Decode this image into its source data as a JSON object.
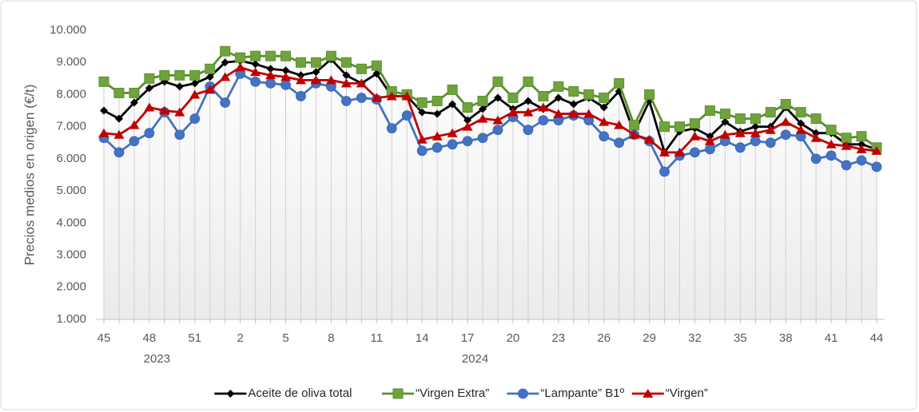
{
  "chart_data": {
    "type": "line",
    "y_label": "Precios medios  en origen (€/t)",
    "categories": [
      "45",
      null,
      null,
      "48",
      null,
      null,
      "51",
      null,
      null,
      "2",
      null,
      null,
      "5",
      null,
      null,
      "8",
      null,
      null,
      "11",
      null,
      null,
      "14",
      null,
      null,
      "17",
      null,
      null,
      "20",
      null,
      null,
      "23",
      null,
      null,
      "26",
      null,
      null,
      "29",
      null,
      null,
      "32",
      null,
      null,
      "35",
      null,
      null,
      "38",
      null,
      null,
      "41",
      null,
      null,
      "44"
    ],
    "groups": [
      {
        "name": "2023",
        "count": 8
      },
      {
        "name": "2024",
        "count": 44
      }
    ],
    "ylim": [
      1000,
      10000
    ],
    "yticks": [
      {
        "value": 1000,
        "label": "1.000"
      },
      {
        "value": 2000,
        "label": "2.000"
      },
      {
        "value": 3000,
        "label": "3.000"
      },
      {
        "value": 4000,
        "label": "4.000"
      },
      {
        "value": 5000,
        "label": "5.000"
      },
      {
        "value": 6000,
        "label": "6.000"
      },
      {
        "value": 7000,
        "label": "7.000"
      },
      {
        "value": 8000,
        "label": "8.000"
      },
      {
        "value": 9000,
        "label": "9.000"
      },
      {
        "value": 10000,
        "label": "10.000"
      }
    ],
    "grid": false,
    "legend": "bottom",
    "series": [
      {
        "name": "Aceite de oliva total",
        "color": "#000000",
        "marker": "diamond",
        "values": [
          7500,
          7250,
          7750,
          8200,
          8400,
          8250,
          8350,
          8550,
          9000,
          9050,
          8950,
          8800,
          8750,
          8600,
          8700,
          9100,
          8600,
          8350,
          8650,
          7950,
          7950,
          7450,
          7400,
          7700,
          7200,
          7550,
          7900,
          7550,
          7800,
          7550,
          7900,
          7700,
          7900,
          7600,
          8100,
          6800,
          7800,
          6200,
          6850,
          6950,
          6700,
          7150,
          6850,
          7000,
          7000,
          7600,
          7100,
          6800,
          6800,
          6450,
          6450,
          6300
        ]
      },
      {
        "name": "“Virgen Extra”",
        "color": "#5b8f2e",
        "marker": "square",
        "values": [
          8400,
          8050,
          8050,
          8500,
          8600,
          8600,
          8600,
          8800,
          9350,
          9150,
          9200,
          9200,
          9200,
          9000,
          9000,
          9200,
          9000,
          8800,
          8900,
          8100,
          8000,
          7750,
          7800,
          8150,
          7600,
          7800,
          8400,
          7900,
          8400,
          7950,
          8250,
          8100,
          8000,
          7900,
          8350,
          7050,
          8000,
          7000,
          7000,
          7100,
          7500,
          7400,
          7250,
          7250,
          7450,
          7700,
          7450,
          7250,
          6900,
          6650,
          6700,
          6350
        ]
      },
      {
        "name": "“Lampante” B1º",
        "color": "#4472c4",
        "marker": "circle",
        "values": [
          6650,
          6200,
          6550,
          6800,
          7450,
          6750,
          7250,
          8250,
          7750,
          8650,
          8400,
          8350,
          8300,
          7950,
          8350,
          8250,
          7800,
          7900,
          7850,
          6950,
          7350,
          6250,
          6350,
          6450,
          6550,
          6650,
          6900,
          7300,
          6900,
          7200,
          7200,
          7350,
          7200,
          6700,
          6500,
          6750,
          6550,
          5600,
          6100,
          6200,
          6300,
          6550,
          6350,
          6550,
          6500,
          6750,
          6700,
          6000,
          6100,
          5800,
          5950,
          5750
        ]
      },
      {
        "name": "“Virgen”",
        "color": "#c00000",
        "marker": "triangle",
        "values": [
          6800,
          6750,
          7050,
          7600,
          7500,
          7450,
          8000,
          8150,
          8550,
          8850,
          8700,
          8600,
          8550,
          8450,
          8450,
          8450,
          8350,
          8350,
          7900,
          7950,
          7950,
          6600,
          6700,
          6800,
          7000,
          7250,
          7200,
          7450,
          7450,
          7600,
          7400,
          7400,
          7400,
          7150,
          7050,
          6750,
          6600,
          6200,
          6200,
          6700,
          6550,
          6750,
          6800,
          6800,
          6900,
          7150,
          6900,
          6650,
          6450,
          6400,
          6300,
          6250
        ]
      }
    ]
  }
}
